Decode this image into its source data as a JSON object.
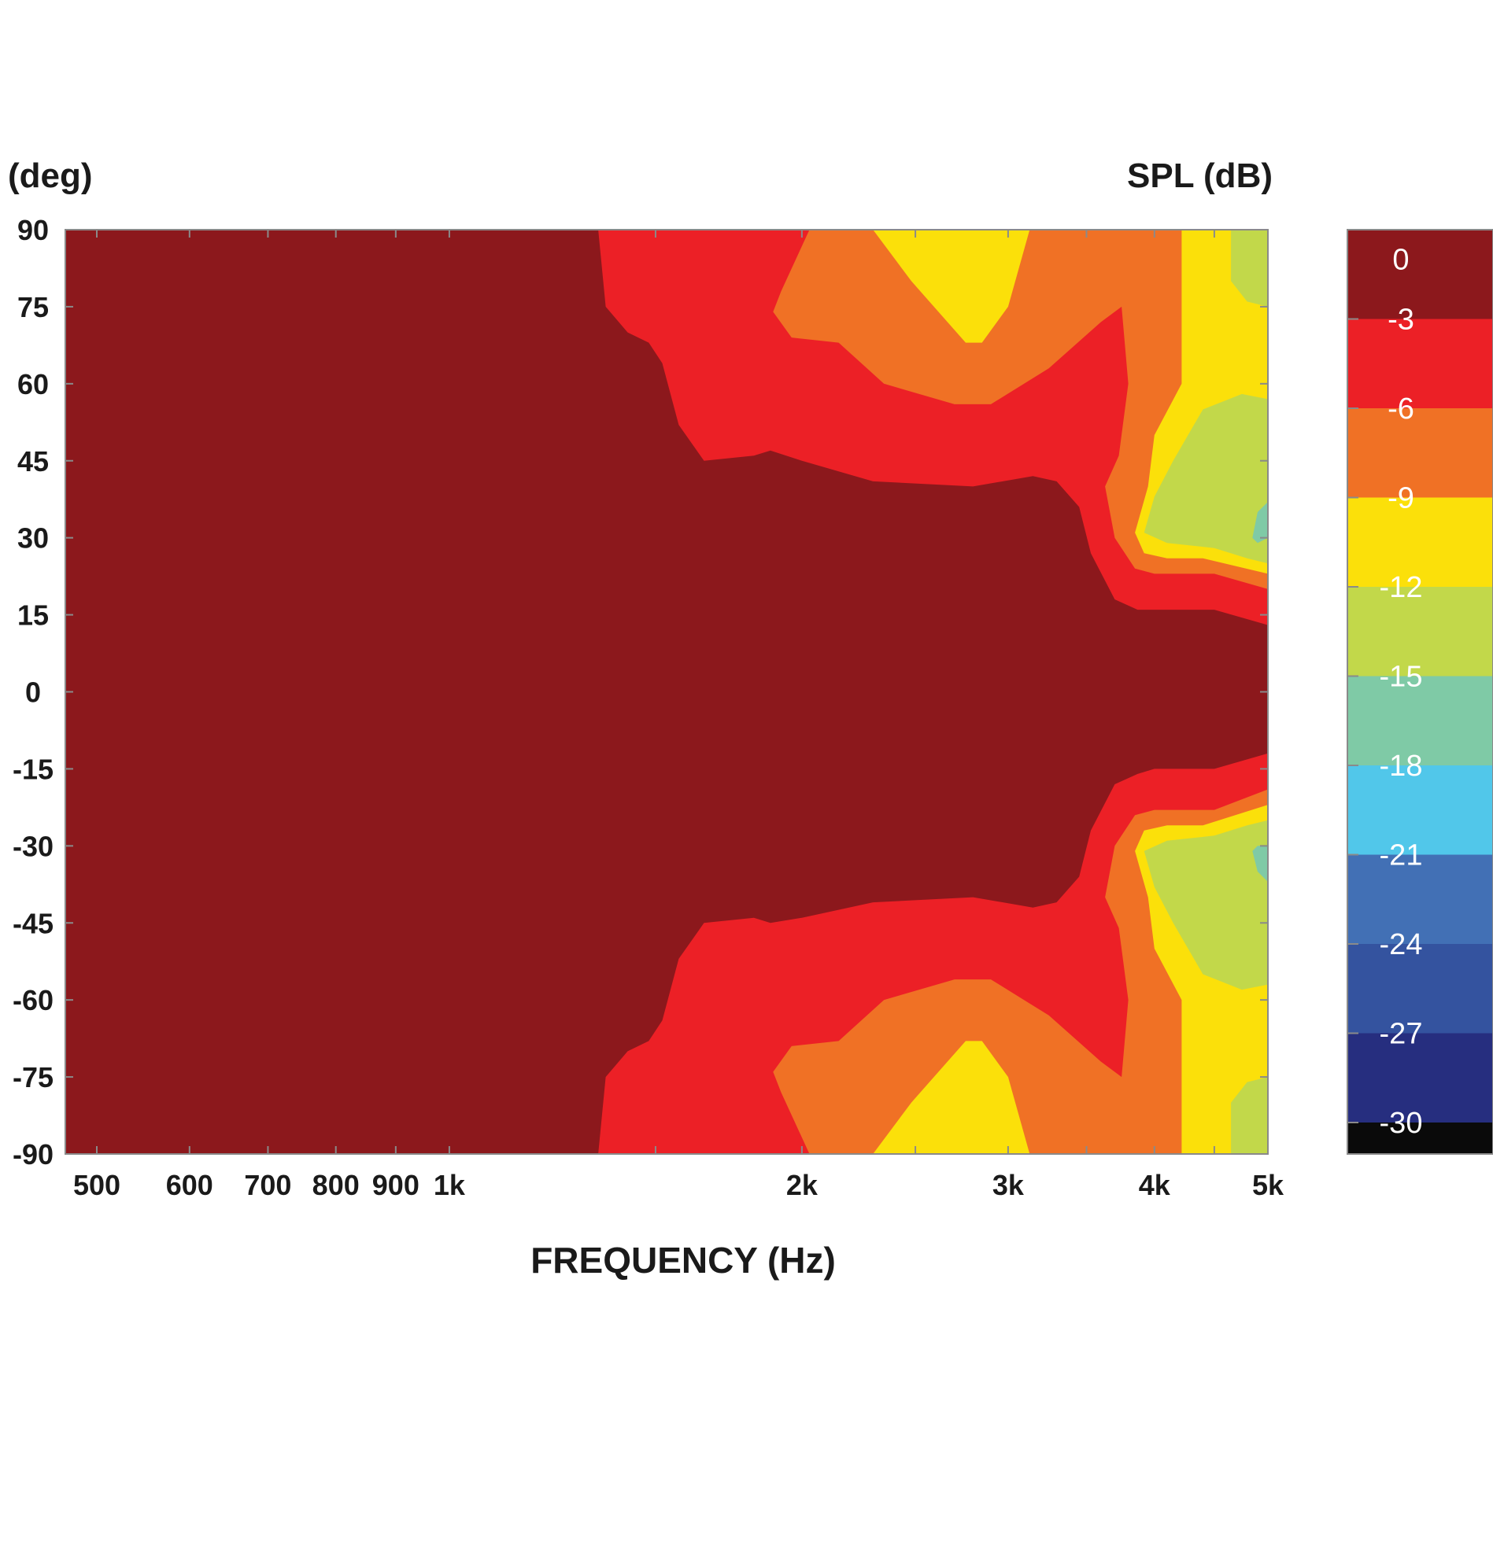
{
  "chart_data": {
    "type": "heatmap",
    "subtype": "filled-contour polar map",
    "xlabel": "FREQUENCY (Hz)",
    "ylabel": "(deg)",
    "colorbar_label": "SPL (dB)",
    "x_scale": "log",
    "xlim": [
      470,
      5000
    ],
    "ylim": [
      -90,
      90
    ],
    "x_ticks": [
      {
        "value": 500,
        "label": "500"
      },
      {
        "value": 600,
        "label": "600"
      },
      {
        "value": 700,
        "label": "700"
      },
      {
        "value": 800,
        "label": "800"
      },
      {
        "value": 900,
        "label": "900"
      },
      {
        "value": 1000,
        "label": "1k"
      },
      {
        "value": 2000,
        "label": "2k"
      },
      {
        "value": 3000,
        "label": "3k"
      },
      {
        "value": 4000,
        "label": "4k"
      },
      {
        "value": 5000,
        "label": "5k"
      }
    ],
    "x_minor_ticks": [
      1500,
      2500,
      3500,
      4500
    ],
    "y_ticks": [
      90,
      75,
      60,
      45,
      30,
      15,
      0,
      -15,
      -30,
      -45,
      -60,
      -75,
      -90
    ],
    "y_tick_labels": [
      "90",
      "75",
      "60",
      "45",
      "30",
      "15",
      "0",
      "-15",
      "-30",
      "-45",
      "-60",
      "-75",
      "-90"
    ],
    "colorbar": {
      "levels": [
        0,
        -3,
        -6,
        -9,
        -12,
        -15,
        -18,
        -21,
        -24,
        -27,
        -30
      ],
      "labels": [
        "0",
        "-3",
        "-6",
        "-9",
        "-12",
        "-15",
        "-18",
        "-21",
        "-24",
        "-27",
        "-30"
      ],
      "colors": [
        "#8c181c",
        "#ec2026",
        "#f07125",
        "#fbe00a",
        "#c2d84a",
        "#7fcaa6",
        "#51c7ea",
        "#4270b5",
        "#34539f",
        "#262e7f",
        "#0a0a0a"
      ]
    },
    "grid": false,
    "contours": [
      {
        "level": -3,
        "color": "#ec2026",
        "regions": [
          [
            [
              1340,
              90
            ],
            [
              1360,
              75
            ],
            [
              1420,
              70
            ],
            [
              1480,
              68
            ],
            [
              1520,
              64
            ],
            [
              1570,
              52
            ],
            [
              1650,
              45
            ],
            [
              1820,
              46
            ],
            [
              1880,
              47
            ],
            [
              2000,
              45
            ],
            [
              2300,
              41
            ],
            [
              2800,
              40
            ],
            [
              3150,
              42
            ],
            [
              3300,
              41
            ],
            [
              3450,
              36
            ],
            [
              3530,
              27
            ],
            [
              3700,
              18
            ],
            [
              3870,
              16
            ],
            [
              4000,
              16
            ],
            [
              4500,
              16
            ],
            [
              5000,
              13
            ],
            [
              5000,
              90
            ]
          ],
          [
            [
              1340,
              -90
            ],
            [
              1360,
              -75
            ],
            [
              1420,
              -70
            ],
            [
              1480,
              -68
            ],
            [
              1520,
              -64
            ],
            [
              1570,
              -52
            ],
            [
              1650,
              -45
            ],
            [
              1820,
              -44
            ],
            [
              1880,
              -45
            ],
            [
              2000,
              -44
            ],
            [
              2300,
              -41
            ],
            [
              2800,
              -40
            ],
            [
              3150,
              -42
            ],
            [
              3300,
              -41
            ],
            [
              3450,
              -36
            ],
            [
              3530,
              -27
            ],
            [
              3700,
              -18
            ],
            [
              3870,
              -16
            ],
            [
              4000,
              -15
            ],
            [
              4500,
              -15
            ],
            [
              5000,
              -12
            ],
            [
              5000,
              -90
            ]
          ]
        ]
      },
      {
        "level": -6,
        "color": "#f07125",
        "regions": [
          [
            [
              2030,
              90
            ],
            [
              1920,
              78
            ],
            [
              1890,
              74
            ],
            [
              1960,
              69
            ],
            [
              2150,
              68
            ],
            [
              2350,
              60
            ],
            [
              2700,
              56
            ],
            [
              2900,
              56
            ],
            [
              3250,
              63
            ],
            [
              3600,
              72
            ],
            [
              3750,
              75
            ],
            [
              3800,
              60
            ],
            [
              3730,
              46
            ],
            [
              3630,
              40
            ],
            [
              3700,
              30
            ],
            [
              3850,
              24
            ],
            [
              4000,
              23
            ],
            [
              4500,
              23
            ],
            [
              5000,
              20
            ],
            [
              5000,
              90
            ]
          ],
          [
            [
              2030,
              -90
            ],
            [
              1920,
              -78
            ],
            [
              1890,
              -74
            ],
            [
              1960,
              -69
            ],
            [
              2150,
              -68
            ],
            [
              2350,
              -60
            ],
            [
              2700,
              -56
            ],
            [
              2900,
              -56
            ],
            [
              3250,
              -63
            ],
            [
              3600,
              -72
            ],
            [
              3750,
              -75
            ],
            [
              3800,
              -60
            ],
            [
              3730,
              -46
            ],
            [
              3630,
              -40
            ],
            [
              3700,
              -30
            ],
            [
              3850,
              -24
            ],
            [
              4000,
              -23
            ],
            [
              4500,
              -23
            ],
            [
              5000,
              -19
            ],
            [
              5000,
              -90
            ]
          ]
        ]
      },
      {
        "level": -9,
        "color": "#fbe00a",
        "regions": [
          [
            [
              2300,
              90
            ],
            [
              2480,
              80
            ],
            [
              2760,
              68
            ],
            [
              2850,
              68
            ],
            [
              3000,
              75
            ],
            [
              3130,
              90
            ]
          ],
          [
            [
              2300,
              -90
            ],
            [
              2480,
              -80
            ],
            [
              2760,
              -68
            ],
            [
              2850,
              -68
            ],
            [
              3000,
              -75
            ],
            [
              3130,
              -90
            ]
          ],
          [
            [
              4220,
              90
            ],
            [
              4220,
              60
            ],
            [
              4000,
              50
            ],
            [
              3950,
              40
            ],
            [
              3850,
              31
            ],
            [
              3920,
              27
            ],
            [
              4100,
              26
            ],
            [
              4400,
              26
            ],
            [
              5000,
              23
            ],
            [
              5000,
              90
            ]
          ],
          [
            [
              4220,
              -90
            ],
            [
              4220,
              -60
            ],
            [
              4000,
              -50
            ],
            [
              3950,
              -40
            ],
            [
              3850,
              -31
            ],
            [
              3920,
              -27
            ],
            [
              4100,
              -26
            ],
            [
              4400,
              -26
            ],
            [
              5000,
              -22
            ],
            [
              5000,
              -90
            ]
          ]
        ]
      },
      {
        "level": -12,
        "color": "#c2d84a",
        "regions": [
          [
            [
              4650,
              90
            ],
            [
              4650,
              80
            ],
            [
              4800,
              76
            ],
            [
              5000,
              75
            ],
            [
              5000,
              90
            ]
          ],
          [
            [
              4650,
              -90
            ],
            [
              4650,
              -80
            ],
            [
              4800,
              -76
            ],
            [
              5000,
              -75
            ],
            [
              5000,
              -90
            ]
          ],
          [
            [
              5000,
              57
            ],
            [
              4750,
              58
            ],
            [
              4400,
              55
            ],
            [
              4150,
              45
            ],
            [
              4000,
              38
            ],
            [
              3920,
              31
            ],
            [
              4100,
              29
            ],
            [
              4500,
              28
            ],
            [
              4800,
              26
            ],
            [
              5000,
              25
            ]
          ],
          [
            [
              5000,
              -57
            ],
            [
              4750,
              -58
            ],
            [
              4400,
              -55
            ],
            [
              4150,
              -45
            ],
            [
              4000,
              -38
            ],
            [
              3920,
              -31
            ],
            [
              4100,
              -29
            ],
            [
              4500,
              -28
            ],
            [
              4800,
              -26
            ],
            [
              5000,
              -25
            ]
          ]
        ]
      },
      {
        "level": -15,
        "color": "#7fcaa6",
        "regions": [
          [
            [
              5000,
              37
            ],
            [
              4900,
              35
            ],
            [
              4850,
              30
            ],
            [
              4900,
              29
            ],
            [
              5000,
              30
            ]
          ],
          [
            [
              5000,
              -37
            ],
            [
              4900,
              -35
            ],
            [
              4850,
              -31
            ],
            [
              4900,
              -30
            ],
            [
              5000,
              -30
            ]
          ]
        ]
      }
    ]
  }
}
